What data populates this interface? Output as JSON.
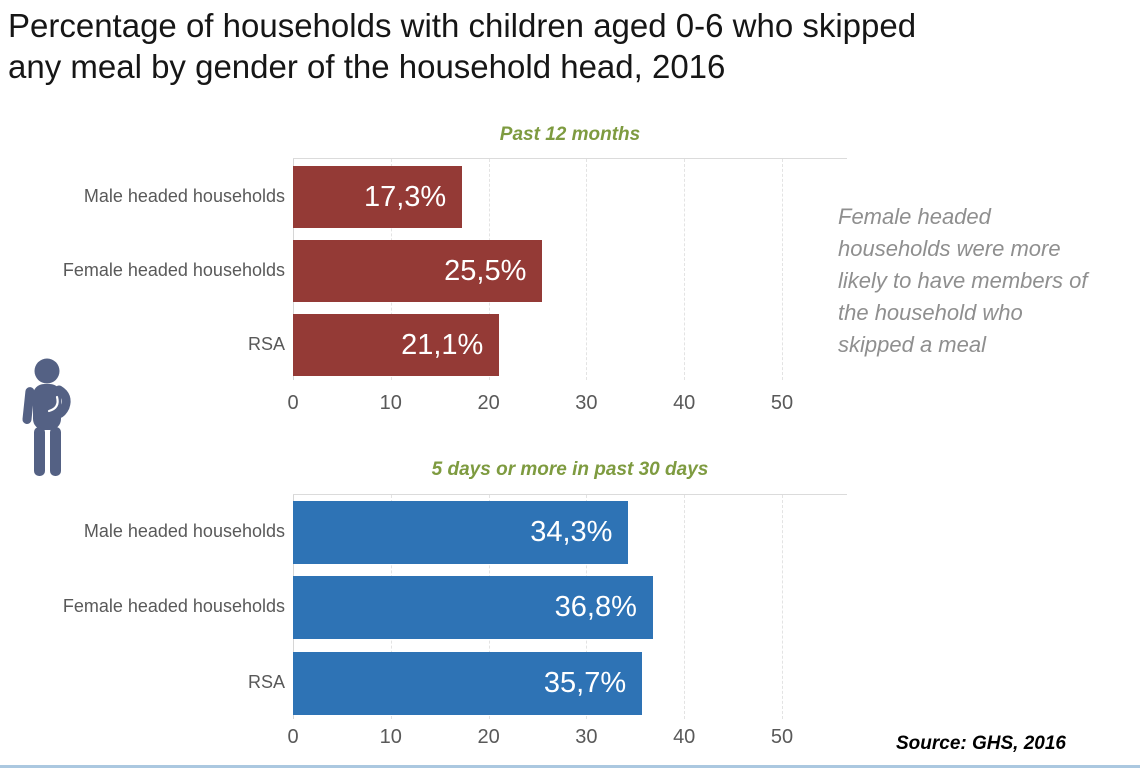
{
  "title": {
    "line1": "Percentage of households with children aged 0-6 who skipped",
    "line2": "any meal by gender of the household head, 2016"
  },
  "annotation": {
    "lines": [
      "Female headed",
      "households were more",
      "likely to have members of",
      "the household who",
      "skipped a meal"
    ]
  },
  "source": "Source: GHS, 2016",
  "icon": {
    "name": "person-hungry-icon",
    "color": "#546184"
  },
  "colors": {
    "past12_bar": "#943A36",
    "past30_bar": "#2E73B5",
    "section_header": "#7E9B40",
    "axis_text": "#595959",
    "annotation_text": "#8F8F8F",
    "bottom_strip": "#ABC8E0"
  },
  "chart_data": [
    {
      "type": "bar",
      "orientation": "horizontal",
      "title": "Past 12 months",
      "categories": [
        "Male headed households",
        "Female headed households",
        "RSA"
      ],
      "values": [
        17.3,
        25.5,
        21.1
      ],
      "labels": [
        "17,3%",
        "25,5%",
        "21,1%"
      ],
      "bar_color": "#943A36",
      "xlim": [
        0,
        50
      ],
      "xticks": [
        0,
        10,
        20,
        30,
        40,
        50
      ],
      "grid": "dashed-vertical",
      "legend": "none"
    },
    {
      "type": "bar",
      "orientation": "horizontal",
      "title": "5 days or more in past 30 days",
      "categories": [
        "Male headed households",
        "Female headed households",
        "RSA"
      ],
      "values": [
        34.3,
        36.8,
        35.7
      ],
      "labels": [
        "34,3%",
        "36,8%",
        "35,7%"
      ],
      "bar_color": "#2E73B5",
      "xlim": [
        0,
        50
      ],
      "xticks": [
        0,
        10,
        20,
        30,
        40,
        50
      ],
      "grid": "dashed-vertical",
      "legend": "none"
    }
  ]
}
